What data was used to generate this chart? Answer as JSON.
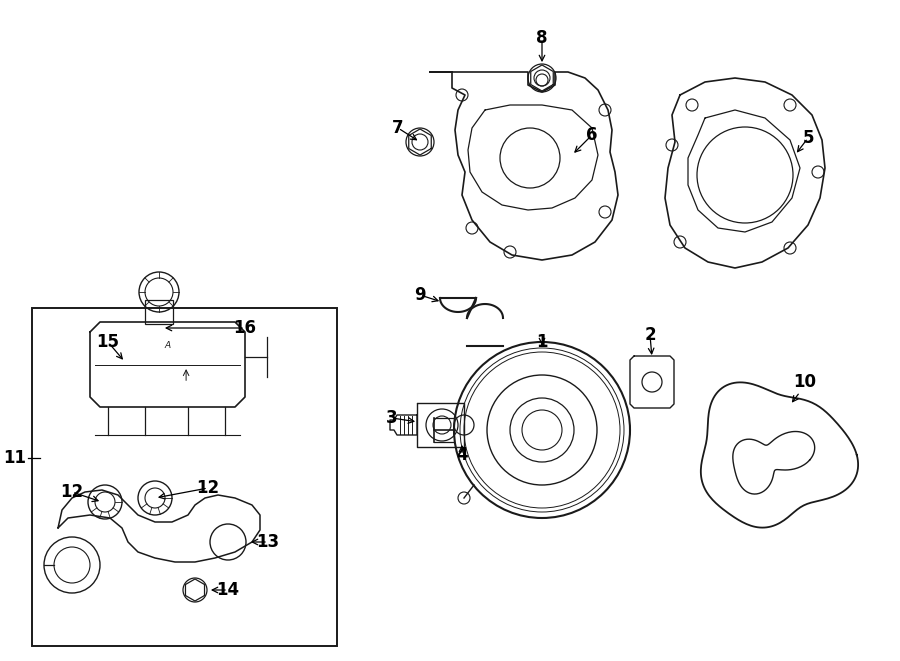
{
  "bg_color": "#ffffff",
  "line_color": "#1a1a1a",
  "figsize": [
    9.0,
    6.61
  ],
  "dpi": 100,
  "xlim": [
    0,
    9.0
  ],
  "ylim": [
    0,
    6.61
  ]
}
